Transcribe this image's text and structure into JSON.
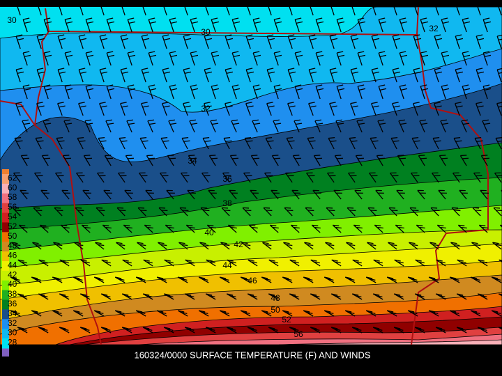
{
  "caption": "160324/0000 SURFACE TEMPERATURE (F) AND WINDS",
  "contour_labels": [
    30,
    30,
    32,
    32,
    34,
    36,
    38,
    40,
    42,
    44,
    46,
    48,
    50,
    52,
    56
  ],
  "legend": {
    "labels": [
      62,
      60,
      58,
      56,
      54,
      52,
      50,
      48,
      46,
      44,
      42,
      40,
      38,
      36,
      34,
      32,
      30,
      28
    ],
    "colors": [
      "#f6a070",
      "#f8b0b8",
      "#f07080",
      "#e04040",
      "#d02020",
      "#900000",
      "#f07000",
      "#d08a20",
      "#f0c000",
      "#f0f000",
      "#c8f000",
      "#80f000",
      "#20b020",
      "#008020",
      "#1a4f8a",
      "#1f8fef",
      "#10b8f0",
      "#00e0f0"
    ]
  }
}
